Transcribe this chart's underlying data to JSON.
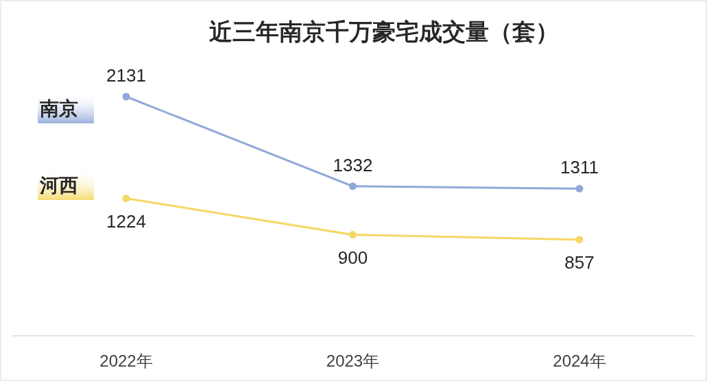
{
  "chart_data": {
    "type": "line",
    "title": "近三年南京千万豪宅成交量（套）",
    "categories": [
      "2022年",
      "2023年",
      "2024年"
    ],
    "series": [
      {
        "name": "南京",
        "color": "#8fa8d8",
        "values": [
          2131,
          1332,
          1311
        ]
      },
      {
        "name": "河西",
        "color": "#f5d865",
        "values": [
          1224,
          900,
          857
        ]
      }
    ],
    "data_labels": true,
    "marker": "circle",
    "legend": "left"
  }
}
